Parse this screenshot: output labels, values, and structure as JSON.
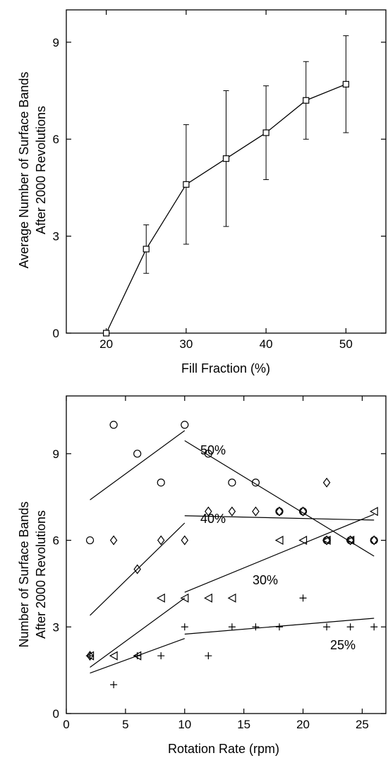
{
  "chart_data": [
    {
      "type": "line",
      "title": "",
      "xlabel": "Fill Fraction (%)",
      "ylabel_lines": [
        "Average Number of Surface Bands",
        "After 2000 Revolutions"
      ],
      "xlim": [
        15,
        55
      ],
      "ylim": [
        0,
        10
      ],
      "xticks": [
        20,
        30,
        40,
        50
      ],
      "yticks": [
        0,
        3,
        6,
        9
      ],
      "grid": false,
      "marker": "square",
      "series": [
        {
          "x": [
            20,
            25,
            30,
            35,
            40,
            45,
            50
          ],
          "y": [
            0,
            2.6,
            4.6,
            5.4,
            6.2,
            7.2,
            7.7
          ],
          "err_low": [
            0,
            1.85,
            2.75,
            3.3,
            4.75,
            6.0,
            6.2
          ],
          "err_high": [
            0,
            3.35,
            6.45,
            7.5,
            7.65,
            8.4,
            9.2
          ]
        }
      ]
    },
    {
      "type": "scatter",
      "title": "",
      "xlabel": "Rotation Rate (rpm)",
      "ylabel_lines": [
        "Number of Surface Bands",
        "After 2000 Revolutions"
      ],
      "xlim": [
        0,
        27
      ],
      "ylim": [
        0,
        11
      ],
      "xticks": [
        0,
        5,
        10,
        15,
        20,
        25
      ],
      "yticks": [
        0,
        3,
        6,
        9
      ],
      "grid": false,
      "series": [
        {
          "label": "50%",
          "marker": "circle",
          "points": [
            [
              2,
              6
            ],
            [
              4,
              10
            ],
            [
              6,
              9
            ],
            [
              8,
              8
            ],
            [
              10,
              10
            ],
            [
              12,
              9
            ],
            [
              14,
              8
            ],
            [
              16,
              8
            ],
            [
              18,
              7
            ],
            [
              20,
              7
            ],
            [
              22,
              6
            ],
            [
              24,
              6
            ],
            [
              26,
              6
            ]
          ],
          "fits": [
            [
              [
                2,
                7.4
              ],
              [
                10,
                9.8
              ]
            ],
            [
              [
                10,
                9.45
              ],
              [
                26,
                5.45
              ]
            ]
          ]
        },
        {
          "label": "40%",
          "marker": "diamond",
          "points": [
            [
              2,
              2
            ],
            [
              4,
              6
            ],
            [
              6,
              5
            ],
            [
              8,
              6
            ],
            [
              10,
              6
            ],
            [
              12,
              7
            ],
            [
              14,
              7
            ],
            [
              16,
              7
            ],
            [
              18,
              7
            ],
            [
              20,
              7
            ],
            [
              22,
              8
            ],
            [
              22,
              6
            ],
            [
              24,
              6
            ],
            [
              26,
              6
            ]
          ],
          "fits": [
            [
              [
                2,
                3.4
              ],
              [
                10,
                6.6
              ]
            ],
            [
              [
                10,
                6.85
              ],
              [
                26,
                6.7
              ]
            ]
          ]
        },
        {
          "label": "30%",
          "marker": "triangle-left",
          "points": [
            [
              2,
              2
            ],
            [
              4,
              2
            ],
            [
              6,
              2
            ],
            [
              8,
              4
            ],
            [
              10,
              4
            ],
            [
              12,
              4
            ],
            [
              14,
              4
            ],
            [
              18,
              6
            ],
            [
              20,
              6
            ],
            [
              22,
              6
            ],
            [
              24,
              6
            ],
            [
              26,
              7
            ]
          ],
          "fits": [
            [
              [
                2,
                1.6
              ],
              [
                10,
                4.0
              ]
            ],
            [
              [
                10,
                4.2
              ],
              [
                26,
                6.9
              ]
            ]
          ]
        },
        {
          "label": "25%",
          "marker": "plus",
          "points": [
            [
              2,
              2
            ],
            [
              4,
              1
            ],
            [
              6,
              2
            ],
            [
              8,
              2
            ],
            [
              10,
              3
            ],
            [
              12,
              2
            ],
            [
              14,
              3
            ],
            [
              16,
              3
            ],
            [
              18,
              3
            ],
            [
              20,
              4
            ],
            [
              22,
              3
            ],
            [
              24,
              3
            ],
            [
              26,
              3
            ]
          ],
          "fits": [
            [
              [
                2,
                1.4
              ],
              [
                10,
                2.6
              ]
            ],
            [
              [
                10,
                2.75
              ],
              [
                26,
                3.3
              ]
            ]
          ]
        }
      ]
    }
  ]
}
